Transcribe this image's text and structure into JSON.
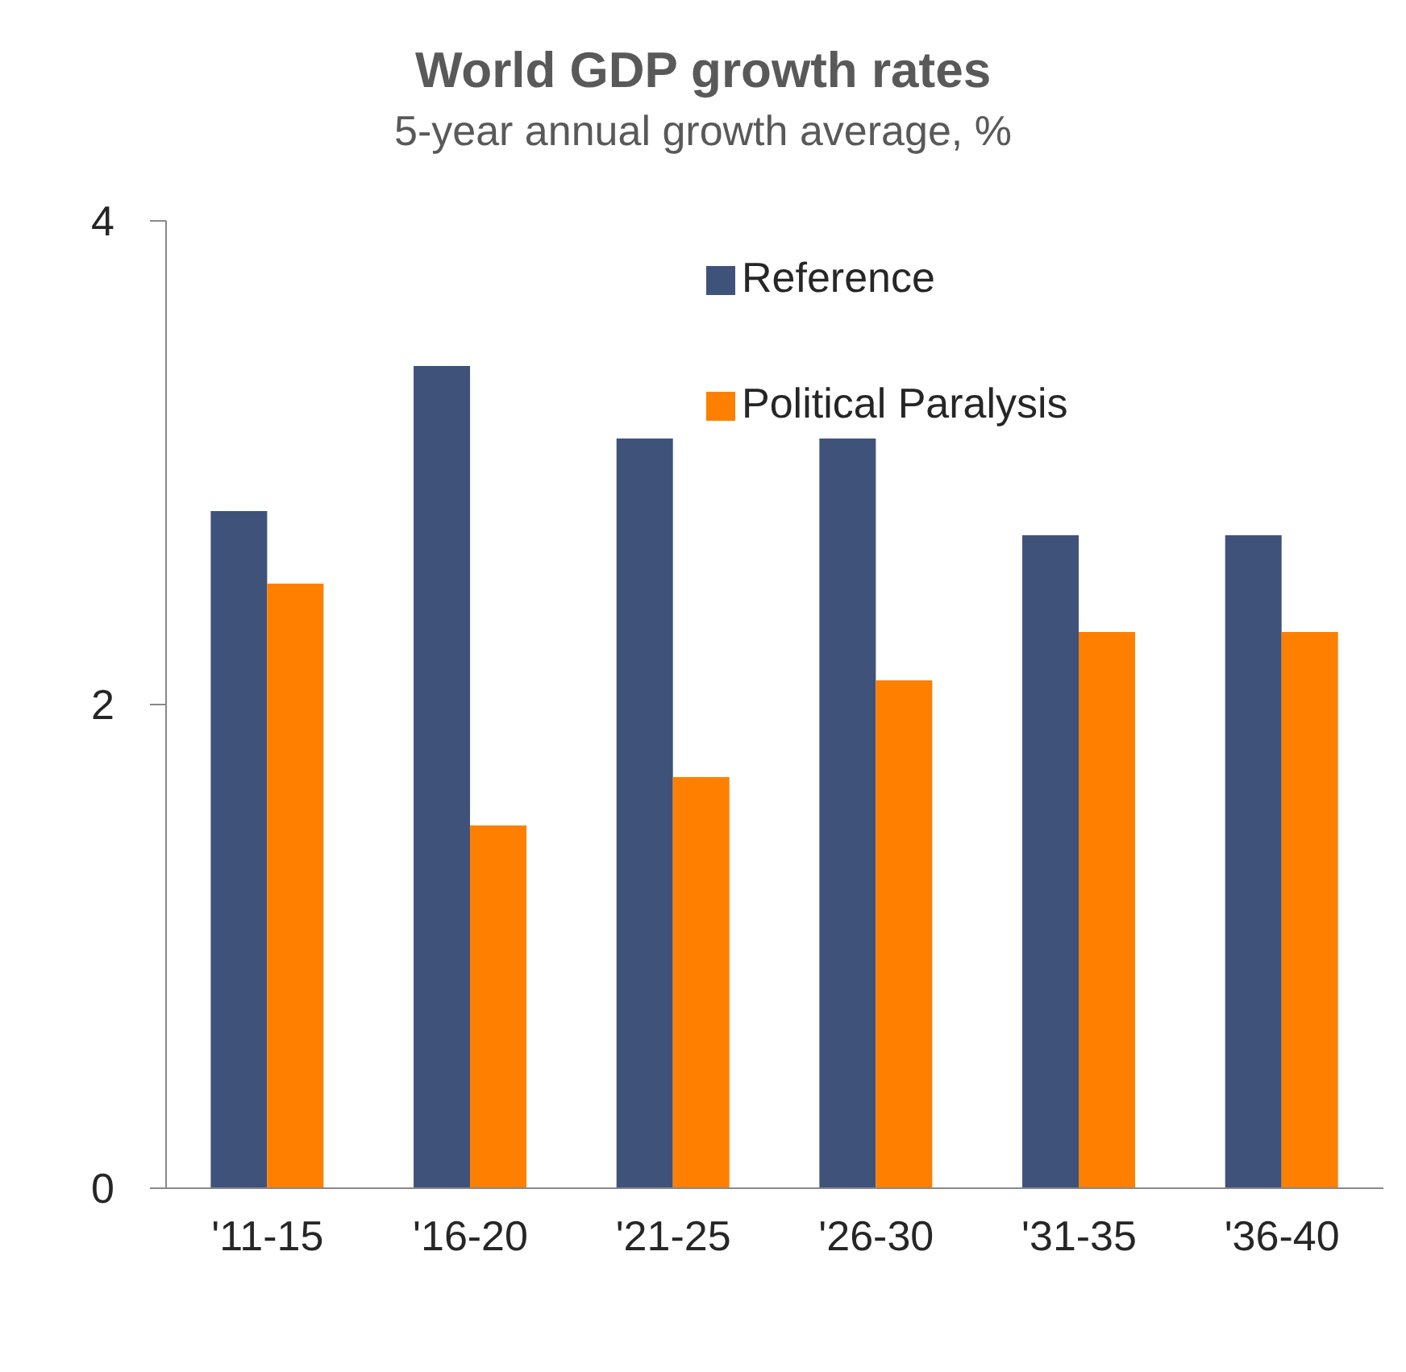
{
  "chart_data": {
    "type": "bar",
    "title": "World GDP growth rates",
    "subtitle": "5-year annual growth average, %",
    "categories": [
      "'11-15",
      "'16-20",
      "'21-25",
      "'26-30",
      "'31-35",
      "'36-40"
    ],
    "series": [
      {
        "name": "Reference",
        "color": "#3f527a",
        "values": [
          2.8,
          3.4,
          3.1,
          3.1,
          2.7,
          2.7
        ]
      },
      {
        "name": "Political Paralysis",
        "color": "#ff7f00",
        "values": [
          2.5,
          1.5,
          1.7,
          2.1,
          2.3,
          2.3
        ]
      }
    ],
    "ylim": [
      0,
      4
    ],
    "yticks": [
      0,
      2,
      4
    ],
    "grid": false,
    "legend": "top right"
  }
}
